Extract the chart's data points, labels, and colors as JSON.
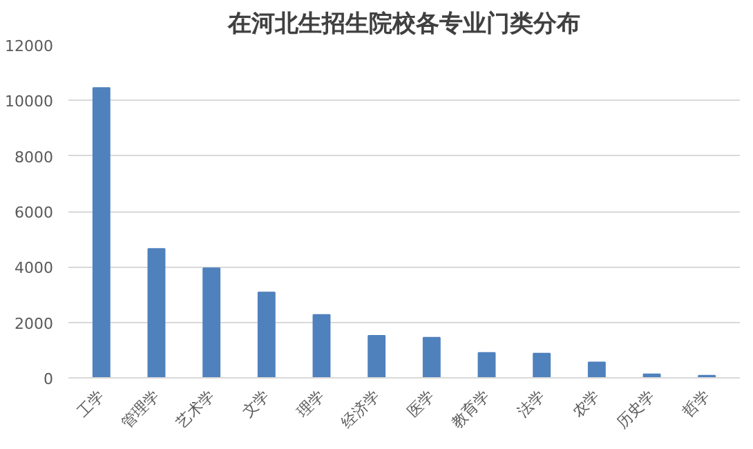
{
  "chart_data": {
    "type": "bar",
    "title": "在河北生招生院校各专业门类分布",
    "categories": [
      "工学",
      "管理学",
      "艺术学",
      "文学",
      "理学",
      "经济学",
      "医学",
      "教育学",
      "法学",
      "农学",
      "历史学",
      "哲学"
    ],
    "values": [
      10450,
      4650,
      3950,
      3080,
      2270,
      1520,
      1450,
      900,
      880,
      560,
      130,
      80
    ],
    "color": "#4f81bd",
    "ylim": [
      0,
      12000
    ],
    "yticks": [
      0,
      2000,
      4000,
      6000,
      8000,
      10000,
      12000
    ],
    "grid": "y"
  }
}
